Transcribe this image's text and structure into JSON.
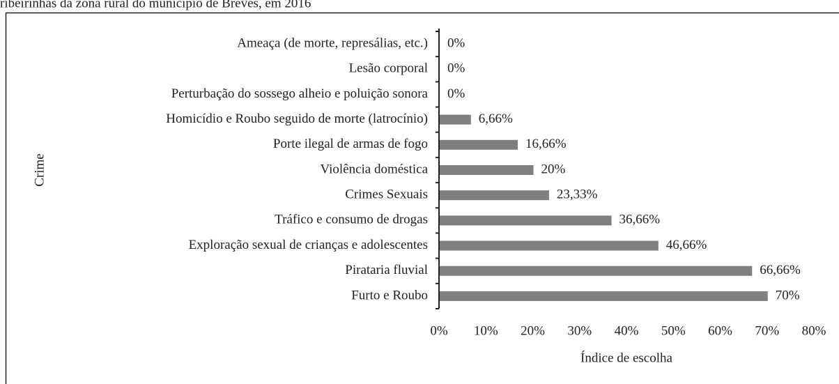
{
  "chart_data": {
    "type": "bar",
    "orientation": "horizontal",
    "title": "ribeirinhas da zona rural do município de Breves, em 2016",
    "xlabel": "Índice de escolha",
    "ylabel": "Crime",
    "categories": [
      "Ameaça (de morte, represálias, etc.)",
      "Lesão corporal",
      "Perturbação do sossego alheio e poluição sonora",
      "Homicídio e Roubo seguido de morte (latrocínio)",
      "Porte ilegal de armas de fogo",
      "Violência doméstica",
      "Crimes Sexuais",
      "Tráfico e consumo de drogas",
      "Exploração sexual de crianças e adolescentes",
      "Pirataria fluvial",
      "Furto e Roubo"
    ],
    "values": [
      0,
      0,
      0,
      6.66,
      16.66,
      20,
      23.33,
      36.66,
      46.66,
      66.66,
      70
    ],
    "value_labels": [
      "0%",
      "0%",
      "0%",
      "6,66%",
      "16,66%",
      "20%",
      "23,33%",
      "36,66%",
      "46,66%",
      "66,66%",
      "70%"
    ],
    "color": "#7f7f7f",
    "xlim": [
      0,
      80
    ],
    "xticks": [
      {
        "value": 0,
        "label": "0%"
      },
      {
        "value": 10,
        "label": "10%"
      },
      {
        "value": 20,
        "label": "20%"
      },
      {
        "value": 30,
        "label": "30%"
      },
      {
        "value": 40,
        "label": "40%"
      },
      {
        "value": 50,
        "label": "50%"
      },
      {
        "value": 60,
        "label": "60%"
      },
      {
        "value": 70,
        "label": "70%"
      },
      {
        "value": 80,
        "label": "80%"
      }
    ]
  }
}
